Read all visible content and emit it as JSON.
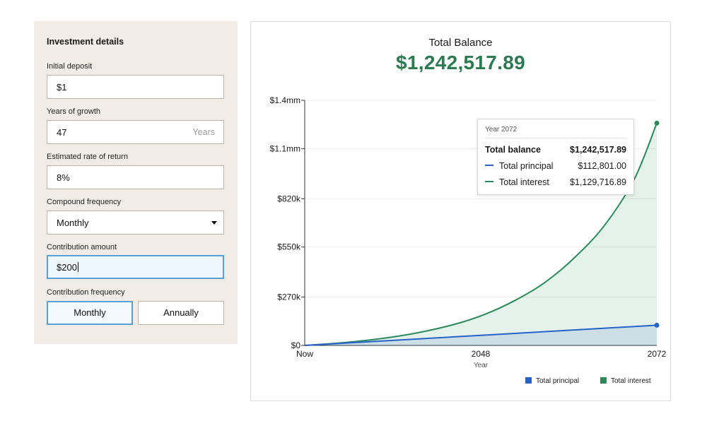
{
  "panel": {
    "title": "Investment details",
    "initial_deposit": {
      "label": "Initial deposit",
      "value": "$1"
    },
    "years": {
      "label": "Years of growth",
      "value": "47",
      "suffix": "Years"
    },
    "rate": {
      "label": "Estimated rate of return",
      "value": "8%"
    },
    "compound": {
      "label": "Compound frequency",
      "value": "Monthly"
    },
    "contribution": {
      "label": "Contribution amount",
      "value": "$200"
    },
    "contribution_frequency": {
      "label": "Contribution frequency",
      "options": [
        "Monthly",
        "Annually"
      ],
      "selected": "Monthly"
    }
  },
  "result": {
    "label": "Total Balance",
    "value": "$1,242,517.89"
  },
  "tooltip": {
    "year": "Year 2072",
    "rows": [
      {
        "label": "Total balance",
        "value": "$1,242,517.89"
      },
      {
        "label": "Total principal",
        "value": "$112,801.00"
      },
      {
        "label": "Total interest",
        "value": "$1,129,716.89"
      }
    ]
  },
  "legend": {
    "principal": "Total principal",
    "interest": "Total interest"
  },
  "colors": {
    "principal": "#2563c9",
    "interest": "#2a8a5a",
    "accent": "#2a7b4f"
  },
  "chart_data": {
    "type": "area",
    "x_axis": {
      "label": "Year",
      "ticks": [
        "Now",
        "2048",
        "2072"
      ],
      "range": [
        0,
        47
      ]
    },
    "y_axis": {
      "ticks": [
        "$0",
        "$270k",
        "$550k",
        "$820k",
        "$1.1mm",
        "$1.4mm"
      ],
      "tick_values": [
        0,
        270000,
        550000,
        820000,
        1100000,
        1370000
      ],
      "range": [
        0,
        1370000
      ]
    },
    "series": [
      {
        "name": "Total principal",
        "points": [
          [
            0,
            1
          ],
          [
            47,
            112801
          ]
        ]
      },
      {
        "name": "Total balance",
        "points": [
          [
            0,
            1
          ],
          [
            5,
            15000
          ],
          [
            10,
            37000
          ],
          [
            15,
            70000
          ],
          [
            20,
            118000
          ],
          [
            24,
            173000
          ],
          [
            28,
            250000
          ],
          [
            32,
            350000
          ],
          [
            36,
            490000
          ],
          [
            40,
            670000
          ],
          [
            44,
            930000
          ],
          [
            47,
            1242518
          ]
        ]
      }
    ]
  }
}
